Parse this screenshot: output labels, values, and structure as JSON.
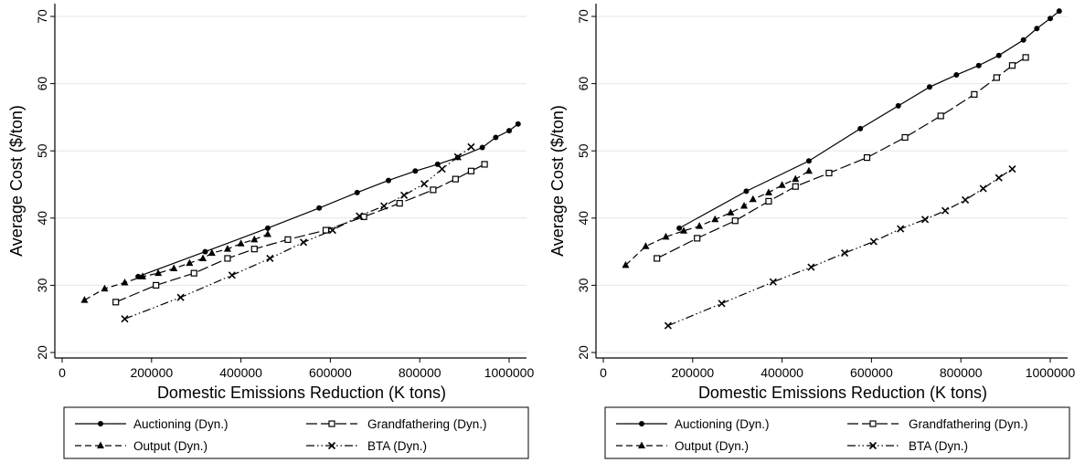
{
  "chart_data": [
    {
      "type": "line",
      "xlabel": "Domestic Emissions Reduction (K tons)",
      "ylabel": "Average Cost ($/ton)",
      "xlim": [
        0,
        1000000
      ],
      "ylim": [
        20,
        70
      ],
      "x_ticks": [
        "0",
        "200000",
        "400000",
        "600000",
        "800000",
        "1000000"
      ],
      "y_ticks": [
        "20",
        "30",
        "40",
        "50",
        "60",
        "70"
      ],
      "grid": true,
      "legend_placement": "bottom",
      "series": [
        {
          "name": "Auctioning (Dyn.)",
          "marker": "circle",
          "dash": "solid",
          "x": [
            170000,
            320000,
            460000,
            575000,
            660000,
            730000,
            790000,
            840000,
            885000,
            940000,
            970000,
            1000000,
            1020000
          ],
          "y": [
            31.3,
            35.0,
            38.5,
            41.5,
            43.8,
            45.6,
            47.0,
            48.0,
            49.0,
            50.5,
            52.0,
            53.0,
            54.0
          ]
        },
        {
          "name": "Grandfathering (Dyn.)",
          "marker": "square",
          "dash": "longdash",
          "x": [
            120000,
            210000,
            295000,
            370000,
            430000,
            505000,
            590000,
            675000,
            755000,
            830000,
            880000,
            915000,
            945000
          ],
          "y": [
            27.5,
            30.0,
            31.8,
            34.0,
            35.4,
            36.8,
            38.2,
            40.2,
            42.2,
            44.2,
            45.8,
            47.0,
            48.0
          ]
        },
        {
          "name": "Output (Dyn.)",
          "marker": "triangle",
          "dash": "dash",
          "x": [
            50000,
            95000,
            140000,
            180000,
            215000,
            250000,
            285000,
            315000,
            335000,
            370000,
            400000,
            430000,
            460000
          ],
          "y": [
            27.8,
            29.5,
            30.4,
            31.3,
            31.8,
            32.5,
            33.3,
            34.0,
            34.8,
            35.4,
            36.2,
            36.8,
            37.6
          ]
        },
        {
          "name": "BTA (Dyn.)",
          "marker": "x",
          "dash": "dashdot",
          "x": [
            140000,
            265000,
            380000,
            465000,
            540000,
            605000,
            665000,
            720000,
            765000,
            810000,
            850000,
            885000,
            915000
          ],
          "y": [
            25.0,
            28.2,
            31.5,
            34.0,
            36.4,
            38.2,
            40.3,
            41.8,
            43.4,
            45.1,
            47.3,
            49.1,
            50.6
          ]
        }
      ]
    },
    {
      "type": "line",
      "xlabel": "Domestic Emissions Reduction (K tons)",
      "ylabel": "Average Cost ($/ton)",
      "xlim": [
        0,
        1000000
      ],
      "ylim": [
        20,
        70
      ],
      "x_ticks": [
        "0",
        "200000",
        "400000",
        "600000",
        "800000",
        "1000000"
      ],
      "y_ticks": [
        "20",
        "30",
        "40",
        "50",
        "60",
        "70"
      ],
      "grid": true,
      "legend_placement": "bottom",
      "series": [
        {
          "name": "Auctioning (Dyn.)",
          "marker": "circle",
          "dash": "solid",
          "x": [
            170000,
            320000,
            460000,
            575000,
            660000,
            730000,
            790000,
            840000,
            885000,
            940000,
            970000,
            1000000,
            1020000
          ],
          "y": [
            38.5,
            44.0,
            48.5,
            53.3,
            56.7,
            59.5,
            61.3,
            62.7,
            64.2,
            66.5,
            68.2,
            69.7,
            70.8
          ]
        },
        {
          "name": "Grandfathering (Dyn.)",
          "marker": "square",
          "dash": "longdash",
          "x": [
            120000,
            210000,
            295000,
            370000,
            430000,
            505000,
            590000,
            675000,
            755000,
            830000,
            880000,
            915000,
            945000
          ],
          "y": [
            34.0,
            37.0,
            39.6,
            42.5,
            44.7,
            46.7,
            49.0,
            52.0,
            55.2,
            58.4,
            60.9,
            62.7,
            63.9
          ]
        },
        {
          "name": "Output (Dyn.)",
          "marker": "triangle",
          "dash": "dash",
          "x": [
            50000,
            95000,
            140000,
            180000,
            215000,
            250000,
            285000,
            315000,
            335000,
            370000,
            400000,
            430000,
            460000
          ],
          "y": [
            33.0,
            35.8,
            37.2,
            38.1,
            38.8,
            39.8,
            40.8,
            41.8,
            42.8,
            43.8,
            44.9,
            45.8,
            47.0
          ]
        },
        {
          "name": "BTA (Dyn.)",
          "marker": "x",
          "dash": "dashdot",
          "x": [
            145000,
            265000,
            380000,
            465000,
            540000,
            605000,
            665000,
            720000,
            765000,
            810000,
            850000,
            885000,
            915000
          ],
          "y": [
            24.0,
            27.3,
            30.5,
            32.7,
            34.8,
            36.5,
            38.4,
            39.8,
            41.1,
            42.7,
            44.4,
            46.0,
            47.3
          ]
        }
      ]
    }
  ]
}
